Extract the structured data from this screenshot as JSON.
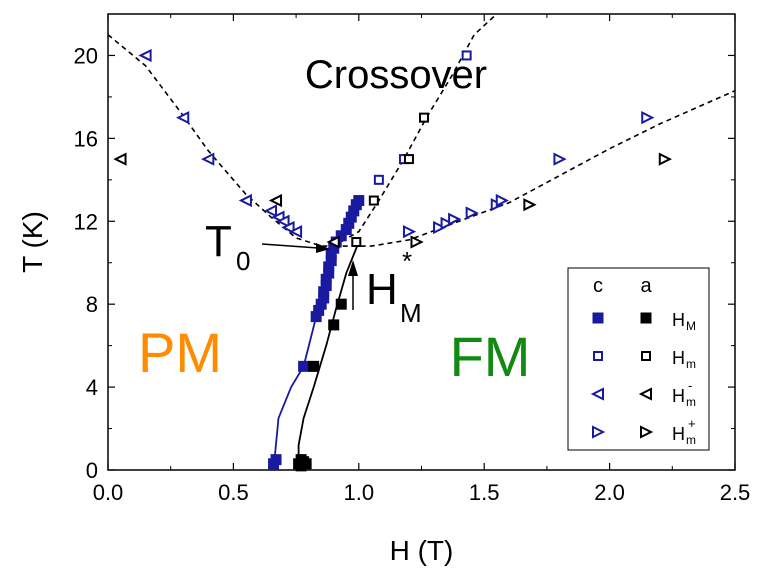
{
  "chart_data": {
    "type": "scatter",
    "xlabel": "H (T)",
    "ylabel": "T (K)",
    "xlim": [
      0.0,
      2.5
    ],
    "ylim": [
      0,
      22
    ],
    "xticks": [
      "0.0",
      "0.5",
      "1.0",
      "1.5",
      "2.0",
      "2.5"
    ],
    "yticks": [
      "0",
      "4",
      "8",
      "12",
      "16",
      "20"
    ],
    "grid": false,
    "legend": {
      "placement": "bottom-right",
      "col_headers": [
        "c",
        "a"
      ],
      "rows": [
        {
          "base": "H",
          "sub": "M",
          "sup": ""
        },
        {
          "base": "H",
          "sub": "m",
          "sup": ""
        },
        {
          "base": "H",
          "sub": "m",
          "sup": "-"
        },
        {
          "base": "H",
          "sub": "m",
          "sup": "+"
        }
      ]
    },
    "annotations": {
      "crossover": "Crossover",
      "pm": "PM",
      "fm": "FM",
      "t0_base": "T",
      "t0_sub": "0",
      "hm_base": "H",
      "hm_sub": "M",
      "hm_sup": "*"
    },
    "colors": {
      "c": "#1a1aa0",
      "a": "#000000",
      "pm": "#ff8c00",
      "fm": "#128a12"
    },
    "series": [
      {
        "axis": "c",
        "field": "H_M",
        "marker": "square-filled",
        "points": [
          [
            0.66,
            0.3
          ],
          [
            0.67,
            0.5
          ],
          [
            0.78,
            5.0
          ],
          [
            0.83,
            7.4
          ],
          [
            0.84,
            7.7
          ],
          [
            0.85,
            8.0
          ],
          [
            0.86,
            8.3
          ],
          [
            0.86,
            8.6
          ],
          [
            0.87,
            8.9
          ],
          [
            0.87,
            9.2
          ],
          [
            0.88,
            9.5
          ],
          [
            0.88,
            9.8
          ],
          [
            0.89,
            10.1
          ],
          [
            0.89,
            10.4
          ],
          [
            0.9,
            10.7
          ],
          [
            0.91,
            11.0
          ],
          [
            0.93,
            11.3
          ],
          [
            0.95,
            11.6
          ],
          [
            0.96,
            11.9
          ],
          [
            0.97,
            12.2
          ],
          [
            0.98,
            12.5
          ],
          [
            0.99,
            12.8
          ],
          [
            1.0,
            13.0
          ]
        ]
      },
      {
        "axis": "a",
        "field": "H_M",
        "marker": "square-filled",
        "points": [
          [
            0.76,
            0.3
          ],
          [
            0.77,
            0.5
          ],
          [
            0.77,
            0.2
          ],
          [
            0.78,
            0.4
          ],
          [
            0.79,
            0.3
          ],
          [
            0.82,
            5.0
          ],
          [
            0.9,
            7.0
          ],
          [
            0.93,
            8.0
          ]
        ]
      },
      {
        "axis": "c",
        "field": "H_m",
        "marker": "square-open",
        "points": [
          [
            1.08,
            14.0
          ],
          [
            1.18,
            15.0
          ],
          [
            1.43,
            20.0
          ]
        ]
      },
      {
        "axis": "a",
        "field": "H_m",
        "marker": "square-open",
        "points": [
          [
            0.99,
            11.0
          ],
          [
            1.06,
            13.0
          ],
          [
            1.2,
            15.0
          ],
          [
            1.26,
            17.0
          ]
        ]
      },
      {
        "axis": "c",
        "field": "H_m-",
        "marker": "triangle-left-open",
        "points": [
          [
            0.15,
            20.0
          ],
          [
            0.3,
            17.0
          ],
          [
            0.4,
            15.0
          ],
          [
            0.55,
            13.0
          ],
          [
            0.65,
            12.5
          ],
          [
            0.68,
            12.2
          ],
          [
            0.7,
            12.0
          ],
          [
            0.72,
            11.7
          ],
          [
            0.75,
            11.5
          ]
        ]
      },
      {
        "axis": "a",
        "field": "H_m-",
        "marker": "triangle-left-open",
        "points": [
          [
            0.05,
            15.0
          ],
          [
            0.67,
            13.0
          ],
          [
            0.9,
            11.0
          ]
        ]
      },
      {
        "axis": "c",
        "field": "H_m+",
        "marker": "triangle-right-open",
        "points": [
          [
            1.2,
            11.5
          ],
          [
            1.32,
            11.7
          ],
          [
            1.35,
            11.9
          ],
          [
            1.38,
            12.1
          ],
          [
            1.45,
            12.4
          ],
          [
            1.55,
            12.8
          ],
          [
            1.57,
            13.0
          ],
          [
            1.8,
            15.0
          ],
          [
            2.15,
            17.0
          ]
        ]
      },
      {
        "axis": "a",
        "field": "H_m+",
        "marker": "triangle-right-open",
        "points": [
          [
            1.23,
            11.0
          ],
          [
            1.68,
            12.8
          ],
          [
            2.22,
            15.0
          ]
        ]
      }
    ]
  }
}
